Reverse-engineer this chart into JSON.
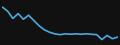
{
  "x": [
    0,
    1,
    2,
    3,
    4,
    5,
    6,
    7,
    8,
    9,
    10,
    11,
    12,
    13,
    14,
    15,
    16,
    17,
    18,
    19,
    20,
    21,
    22
  ],
  "y": [
    0.88,
    0.78,
    0.6,
    0.72,
    0.58,
    0.68,
    0.55,
    0.42,
    0.32,
    0.26,
    0.22,
    0.2,
    0.22,
    0.21,
    0.22,
    0.21,
    0.22,
    0.21,
    0.2,
    0.08,
    0.18,
    0.1,
    0.14
  ],
  "line_color": "#4aaadd",
  "linewidth": 1.2,
  "background_color": "#111111",
  "ylim": [
    0.0,
    1.0
  ],
  "xlim": [
    0,
    22
  ]
}
